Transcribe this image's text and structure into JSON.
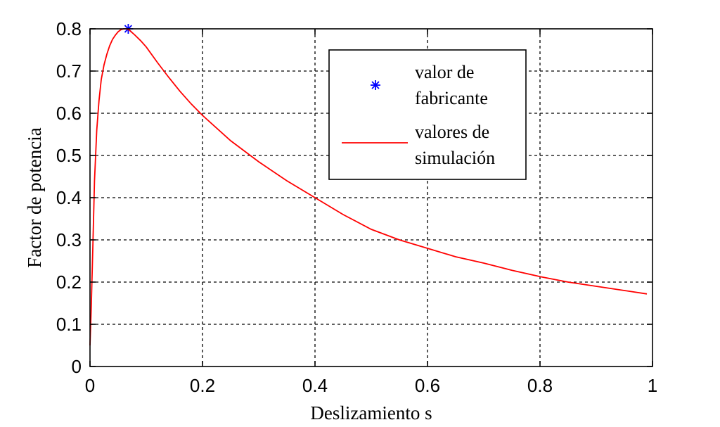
{
  "chart_data": {
    "type": "line",
    "title": "",
    "xlabel": "Deslizamiento s",
    "ylabel": "Factor de potencia",
    "xlim": [
      0,
      1
    ],
    "ylim": [
      0,
      0.8
    ],
    "xticks": [
      0,
      0.2,
      0.4,
      0.6,
      0.8,
      1
    ],
    "yticks": [
      0,
      0.1,
      0.2,
      0.3,
      0.4,
      0.5,
      0.6,
      0.7,
      0.8
    ],
    "xtick_labels": [
      "0",
      "0.2",
      "0.4",
      "0.6",
      "0.8",
      "1"
    ],
    "ytick_labels": [
      "0",
      "0.1",
      "0.2",
      "0.3",
      "0.4",
      "0.5",
      "0.6",
      "0.7",
      "0.8"
    ],
    "grid": true,
    "legend_position": "top-right",
    "series": [
      {
        "name": "valor de fabricante",
        "kind": "marker",
        "marker": "asterisk",
        "color": "#0000ff",
        "x": [
          0.068
        ],
        "y": [
          0.8
        ]
      },
      {
        "name": "valores de simulación",
        "kind": "line",
        "color": "#ff0000",
        "x": [
          0.0,
          0.002,
          0.005,
          0.008,
          0.012,
          0.016,
          0.02,
          0.025,
          0.03,
          0.035,
          0.04,
          0.045,
          0.05,
          0.055,
          0.06,
          0.065,
          0.07,
          0.08,
          0.09,
          0.1,
          0.12,
          0.14,
          0.16,
          0.18,
          0.2,
          0.25,
          0.3,
          0.35,
          0.4,
          0.45,
          0.5,
          0.55,
          0.6,
          0.65,
          0.7,
          0.75,
          0.8,
          0.85,
          0.9,
          0.95,
          0.99
        ],
        "y": [
          0.05,
          0.13,
          0.28,
          0.44,
          0.56,
          0.63,
          0.68,
          0.715,
          0.74,
          0.76,
          0.775,
          0.785,
          0.793,
          0.798,
          0.8,
          0.8,
          0.797,
          0.785,
          0.772,
          0.757,
          0.72,
          0.685,
          0.652,
          0.622,
          0.595,
          0.535,
          0.485,
          0.44,
          0.4,
          0.36,
          0.325,
          0.3,
          0.28,
          0.26,
          0.245,
          0.228,
          0.213,
          0.2,
          0.19,
          0.18,
          0.172
        ]
      }
    ]
  }
}
